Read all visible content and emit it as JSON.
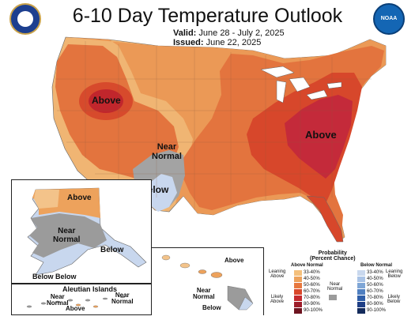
{
  "header": {
    "title": "6-10 Day Temperature Outlook",
    "valid_label": "Valid:",
    "valid_value": "June 28 - July 2, 2025",
    "issued_label": "Issued:",
    "issued_value": "June 22, 2025",
    "left_logo": "dept-commerce-seal-icon",
    "right_logo": "noaa-logo-icon",
    "noaa_text": "NOAA"
  },
  "map_labels": {
    "conus_above_west": "Above",
    "conus_above_east": "Above",
    "conus_near_normal": "Near\nNormal",
    "conus_below": "Below",
    "alaska_above": "Above",
    "alaska_near_normal": "Near\nNormal",
    "alaska_below_se": "Below",
    "alaska_below_sw": "Below Below",
    "aleutian_title": "Aleutian Islands",
    "aleutian_near": "Near\nNormal",
    "aleutian_near2": "Near\nNormal",
    "aleutian_above": "Above",
    "hawaii_above": "Above",
    "hawaii_near": "Near\nNormal",
    "hawaii_below": "Below"
  },
  "legend": {
    "title": "Probability\n(Percent Chance)",
    "above_header": "Above Normal",
    "below_header": "Below Normal",
    "near_label": "Near\nNormal",
    "leaning_above": "Leaning\nAbove",
    "likely_above": "Likely\nAbove",
    "leaning_below": "Leaning\nBelow",
    "likely_below": "Likely\nBelow",
    "above_bins": [
      "33-40%",
      "40-50%",
      "50-60%",
      "60-70%",
      "70-80%",
      "80-90%",
      "90-100%"
    ],
    "below_bins": [
      "33-40%",
      "40-50%",
      "50-60%",
      "60-70%",
      "70-80%",
      "80-90%",
      "90-100%"
    ],
    "above_colors": [
      "#f4c07c",
      "#eda25c",
      "#e7783f",
      "#d9482b",
      "#c42a2e",
      "#9e1e2b",
      "#6e1420"
    ],
    "below_colors": [
      "#c9d8ee",
      "#a9c3e6",
      "#7fa6d6",
      "#4f7fc0",
      "#2f5ea8",
      "#1f3f86",
      "#142b5c"
    ],
    "near_color": "#9a9a9a"
  },
  "colors": {
    "cat_33_40": "#f2b66e",
    "cat_40_50": "#ec9a57",
    "cat_50_60": "#e57a3f",
    "cat_60_70": "#d9482b",
    "cat_70_80": "#c42a2e",
    "below_light": "#c7d6ee",
    "near": "#9b9b9b",
    "land_inset": "#ffffff"
  }
}
